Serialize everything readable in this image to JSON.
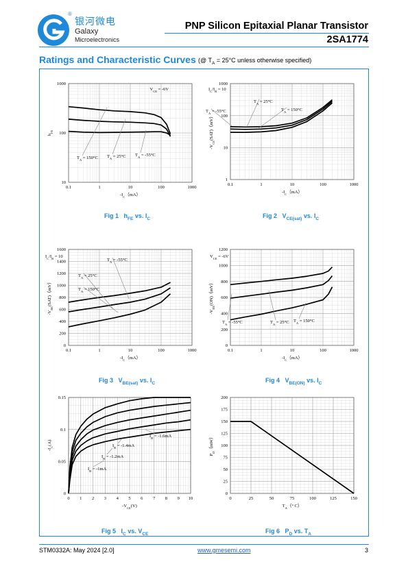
{
  "header": {
    "company_cn": "银河微电",
    "company_en_line1": "Galaxy",
    "company_en_line2": "Microelectronics",
    "reg_mark": "®",
    "doc_title": "PNP Silicon Epitaxial Planar Transistor",
    "part_number": "2SA1774",
    "brand_color": "#1E88D9"
  },
  "section": {
    "title": "Ratings and Characteristic Curves",
    "note_prefix": "(@ T",
    "note_sub": "A",
    "note_suffix": " = 25°C unless otherwise specified)"
  },
  "captions": [
    {
      "fig": "Fig 1",
      "main": "h",
      "sub": "FE",
      "tail": " vs. I",
      "tail_sub": "C"
    },
    {
      "fig": "Fig 2",
      "main": "V",
      "sub": "CE(sat)",
      "tail": " vs. I",
      "tail_sub": "C"
    },
    {
      "fig": "Fig 3",
      "main": "V",
      "sub": "BE(sat)",
      "tail": " vs. I",
      "tail_sub": "C"
    },
    {
      "fig": "Fig 4",
      "main": "V",
      "sub": "BE(ON)",
      "tail": " vs. I",
      "tail_sub": "C"
    },
    {
      "fig": "Fig 5",
      "main": "I",
      "sub": "C",
      "tail": " vs. V",
      "tail_sub": "CE"
    },
    {
      "fig": "Fig 6",
      "main": "P",
      "sub": "D",
      "tail": " vs. T",
      "tail_sub": "A"
    }
  ],
  "chart_data": [
    {
      "type": "line",
      "xscale": "log",
      "yscale": "log",
      "xlim": [
        0.1,
        1000
      ],
      "ylim": [
        10,
        1000
      ],
      "xticks": [
        "0.1",
        "1",
        "10",
        "100",
        "1000"
      ],
      "yticks": [
        "10",
        "100",
        "1000"
      ],
      "xlabel": "-I_C（mA）",
      "ylabel": "h_FE",
      "condition": "V_CE = -6V",
      "series": [
        {
          "name": "T_A = 150°C",
          "x": [
            0.1,
            0.3,
            1,
            3,
            10,
            30,
            60,
            100,
            150,
            200
          ],
          "y": [
            340,
            320,
            295,
            280,
            270,
            255,
            235,
            205,
            150,
            95
          ]
        },
        {
          "name": "T_A = 25°C",
          "x": [
            0.1,
            0.3,
            1,
            3,
            10,
            30,
            60,
            100,
            150,
            200
          ],
          "y": [
            190,
            180,
            172,
            168,
            165,
            160,
            155,
            145,
            120,
            85
          ]
        },
        {
          "name": "T_A = -55°C",
          "x": [
            0.1,
            0.3,
            1,
            3,
            10,
            30,
            60,
            100,
            150,
            200
          ],
          "y": [
            108,
            104,
            102,
            103,
            104,
            105,
            106,
            106,
            100,
            90
          ]
        }
      ]
    },
    {
      "type": "line",
      "xscale": "log",
      "yscale": "log",
      "xlim": [
        0.1,
        1000
      ],
      "ylim": [
        1,
        1000
      ],
      "xticks": [
        "0.1",
        "1",
        "10",
        "100",
        "1000"
      ],
      "yticks": [
        "1",
        "10",
        "100",
        "1000"
      ],
      "xlabel": "-I_C（mA）",
      "ylabel": "-V_CE(SAT)（mV）",
      "condition": "I_C/I_B = 10",
      "series": [
        {
          "name": "T_A = -55°C",
          "x": [
            0.1,
            0.3,
            1,
            3,
            10,
            30,
            100,
            200
          ],
          "y": [
            45,
            44,
            45,
            48,
            58,
            85,
            180,
            310
          ]
        },
        {
          "name": "T_A = 25°C",
          "x": [
            0.1,
            0.3,
            1,
            3,
            10,
            30,
            100,
            200
          ],
          "y": [
            38,
            37,
            38,
            41,
            50,
            75,
            160,
            280
          ]
        },
        {
          "name": "T_A = 150°C",
          "x": [
            0.1,
            0.3,
            1,
            3,
            10,
            30,
            100,
            200
          ],
          "y": [
            30,
            30,
            31,
            34,
            43,
            65,
            140,
            250
          ]
        }
      ]
    },
    {
      "type": "line",
      "xscale": "log",
      "yscale": "linear",
      "xlim": [
        0.1,
        1000
      ],
      "ylim": [
        0,
        1600
      ],
      "xticks": [
        "0.1",
        "1",
        "10",
        "100",
        "1000"
      ],
      "yticks": [
        "0",
        "200",
        "400",
        "600",
        "800",
        "1000",
        "1200",
        "1400",
        "1600"
      ],
      "xlabel": "-I_C（mA）",
      "ylabel": "-V_BE(SAT)（mV）",
      "condition": "I_C/I_B = 10",
      "series": [
        {
          "name": "T_A = -55°C",
          "x": [
            0.1,
            0.3,
            1,
            3,
            10,
            30,
            100,
            200
          ],
          "y": [
            720,
            760,
            800,
            830,
            870,
            910,
            970,
            1050
          ]
        },
        {
          "name": "T_A = 25°C",
          "x": [
            0.1,
            0.3,
            1,
            3,
            10,
            30,
            100,
            200
          ],
          "y": [
            560,
            600,
            640,
            680,
            720,
            770,
            860,
            960
          ]
        },
        {
          "name": "T_A = 150°C",
          "x": [
            0.1,
            0.3,
            1,
            3,
            10,
            30,
            100,
            200
          ],
          "y": [
            310,
            360,
            410,
            460,
            520,
            590,
            720,
            860
          ]
        }
      ]
    },
    {
      "type": "line",
      "xscale": "log",
      "yscale": "linear",
      "xlim": [
        0.1,
        1000
      ],
      "ylim": [
        0,
        1200
      ],
      "xticks": [
        "0.1",
        "1",
        "10",
        "100",
        "1000"
      ],
      "yticks": [
        "0",
        "200",
        "400",
        "600",
        "800",
        "1000",
        "1200"
      ],
      "xlabel": "-I_C（mA）",
      "ylabel": "-V_BE(ON)（mV）",
      "condition": "V_CE = -6V",
      "series": [
        {
          "name": "T_A = -55°C",
          "x": [
            0.1,
            0.3,
            1,
            3,
            10,
            30,
            100,
            150,
            200
          ],
          "y": [
            760,
            780,
            800,
            820,
            840,
            865,
            900,
            930,
            980
          ]
        },
        {
          "name": "T_A = 25°C",
          "x": [
            0.1,
            0.3,
            1,
            3,
            10,
            30,
            100,
            150,
            200
          ],
          "y": [
            590,
            615,
            640,
            665,
            690,
            720,
            760,
            810,
            870
          ]
        },
        {
          "name": "T_A = 150°C",
          "x": [
            0.1,
            0.3,
            1,
            3,
            10,
            30,
            100,
            150,
            200
          ],
          "y": [
            320,
            355,
            390,
            430,
            470,
            515,
            570,
            640,
            730
          ]
        }
      ]
    },
    {
      "type": "line",
      "xscale": "linear",
      "yscale": "linear",
      "xlim": [
        0,
        10
      ],
      "ylim": [
        0,
        0.15
      ],
      "xticks": [
        "0",
        "1",
        "2",
        "3",
        "4",
        "5",
        "6",
        "7",
        "8",
        "9",
        "10"
      ],
      "yticks": [
        "0",
        "0.05",
        "0.1",
        "0.15"
      ],
      "xlabel": "-V_CE(V)",
      "ylabel": "-I_C(A)",
      "series": [
        {
          "name": "I_B = -1mA",
          "x": [
            0,
            0.1,
            0.3,
            0.6,
            1,
            1.5,
            2,
            3,
            4,
            5,
            6,
            7,
            8,
            9,
            10
          ],
          "y": [
            0,
            0.02,
            0.045,
            0.058,
            0.066,
            0.072,
            0.076,
            0.081,
            0.085,
            0.088,
            0.091,
            0.094,
            0.096,
            0.098,
            0.1
          ]
        },
        {
          "name": "I_B = -1.2mA",
          "x": [
            0,
            0.1,
            0.3,
            0.6,
            1,
            1.5,
            2,
            3,
            4,
            5,
            6,
            7,
            8,
            9,
            10
          ],
          "y": [
            0,
            0.025,
            0.052,
            0.066,
            0.075,
            0.082,
            0.087,
            0.093,
            0.097,
            0.101,
            0.104,
            0.107,
            0.11,
            0.112,
            0.115
          ]
        },
        {
          "name": "I_B = -1.4mA",
          "x": [
            0,
            0.1,
            0.3,
            0.6,
            1,
            1.5,
            2,
            3,
            4,
            5,
            6,
            7,
            8,
            9,
            10
          ],
          "y": [
            0,
            0.03,
            0.058,
            0.074,
            0.084,
            0.093,
            0.099,
            0.106,
            0.111,
            0.115,
            0.118,
            0.121,
            0.124,
            0.127,
            0.13
          ]
        },
        {
          "name": "I_B = -1.6mA",
          "x": [
            0,
            0.1,
            0.3,
            0.6,
            1,
            1.5,
            2,
            3,
            4,
            5,
            6,
            7,
            8,
            9,
            10
          ],
          "y": [
            0,
            0.035,
            0.065,
            0.083,
            0.094,
            0.104,
            0.111,
            0.12,
            0.126,
            0.13,
            0.133,
            0.136,
            0.138,
            0.14,
            0.142
          ]
        },
        {
          "name": "",
          "x": [
            0,
            0.1,
            0.3,
            0.6,
            1,
            1.5,
            2,
            3,
            4,
            5,
            6,
            7,
            8,
            9,
            10
          ],
          "y": [
            0,
            0.04,
            0.072,
            0.092,
            0.105,
            0.116,
            0.124,
            0.134,
            0.14,
            0.145,
            0.148,
            0.15,
            0.151,
            0.152,
            0.153
          ]
        }
      ]
    },
    {
      "type": "line",
      "xscale": "linear",
      "yscale": "linear",
      "xlim": [
        0,
        150
      ],
      "ylim": [
        0,
        200
      ],
      "xticks": [
        "0",
        "25",
        "50",
        "75",
        "100",
        "125",
        "150"
      ],
      "yticks": [
        "0",
        "25",
        "50",
        "75",
        "100",
        "125",
        "150",
        "175",
        "200"
      ],
      "xlabel": "T_A（° C）",
      "ylabel": "P_D（mW）",
      "series": [
        {
          "name": "",
          "x": [
            0,
            25,
            150
          ],
          "y": [
            150,
            150,
            0
          ]
        }
      ]
    }
  ],
  "footer": {
    "doc_code": "STM0332A: May 2024 [2.0]",
    "website": "www.gmesemi.com",
    "page": "3"
  }
}
